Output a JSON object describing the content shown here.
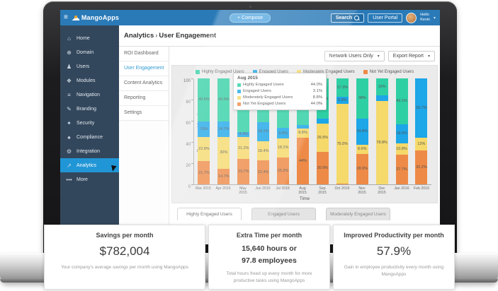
{
  "topbar": {
    "brand": "MangoApps",
    "compose_label": "+ Compose",
    "search_label": "Search",
    "user_portal_label": "User Portal",
    "greeting": "Hello",
    "username": "Kevin"
  },
  "sidebar": {
    "active_index": 9,
    "items": [
      {
        "label": "Home",
        "icon": "home",
        "glyph": "⌂"
      },
      {
        "label": "Domain",
        "icon": "globe",
        "glyph": "⊕"
      },
      {
        "label": "Users",
        "icon": "user",
        "glyph": "♟"
      },
      {
        "label": "Modules",
        "icon": "modules",
        "glyph": "❖"
      },
      {
        "label": "Navigation",
        "icon": "list",
        "glyph": "≡"
      },
      {
        "label": "Branding",
        "icon": "brush",
        "glyph": "✎"
      },
      {
        "label": "Security",
        "icon": "key",
        "glyph": "✦"
      },
      {
        "label": "Compliance",
        "icon": "shield",
        "glyph": "♠"
      },
      {
        "label": "Integration",
        "icon": "wrench",
        "glyph": "⚙"
      },
      {
        "label": "Analytics",
        "icon": "chart",
        "glyph": "↗"
      },
      {
        "label": "More",
        "icon": "ellipsis",
        "glyph": "•••"
      }
    ]
  },
  "breadcrumb": {
    "section": "Analytics",
    "separator": "›",
    "page": "User Engagement"
  },
  "subnav": {
    "active_index": 1,
    "items": [
      "ROI Dashboard",
      "User Engagement",
      "Content Analytics",
      "Reporting",
      "Settings"
    ]
  },
  "controls": {
    "filter_label": "Network Users Only",
    "export_label": "Export Report",
    "caret": "▾"
  },
  "chart_data": {
    "type": "bar",
    "stacked": true,
    "title": "",
    "xlabel": "Time",
    "ylabel": "Engagement Levels",
    "ylim": [
      0,
      100
    ],
    "yticks": [
      0,
      20,
      40,
      60,
      80,
      100
    ],
    "legend_position": "top",
    "categories": [
      "Mar 2015",
      "Apr 2015",
      "May 2015",
      "Jun 2015",
      "Jul 2015",
      "Aug 2015",
      "Sep 2015",
      "Oct 2015",
      "Nov 2015",
      "Dec 2015",
      "Jan 2016",
      "Feb 2016"
    ],
    "series": [
      {
        "name": "Highly Engaged Users",
        "color": "#2fcfa4",
        "values": [
          40.6,
          40.6,
          50.7,
          41.1,
          46.7,
          44.0,
          38.1,
          17.3,
          38.0,
          16.0,
          43.1,
          0
        ],
        "labels": [
          "40.6%",
          "40.6%",
          "50.7%",
          "41.1%",
          "46.7%",
          "44%",
          "38.1%",
          "17.3%",
          "38%",
          "16%",
          "43.1%",
          ""
        ]
      },
      {
        "name": "Engaged Users",
        "color": "#1da6e8",
        "values": [
          15.0,
          14.7,
          4.4,
          18.1,
          9.9,
          3.1,
          4.5,
          6.8,
          24.8,
          5.2,
          18.5,
          55.7
        ],
        "labels": [
          "15%",
          "14.7%",
          "4.4%",
          "18.1%",
          "9.9%",
          "",
          "",
          "6.8%",
          "24.8%",
          "",
          "18.5%",
          "55.7%"
        ]
      },
      {
        "name": "Moderately Engaged Users",
        "color": "#f5d96b",
        "values": [
          22.8,
          30.0,
          21.2,
          18.4,
          18.1,
          8.8,
          26.5,
          75.5,
          8.6,
          78.8,
          10.8,
          12.0
        ],
        "labels": [
          "22.8%",
          "30%",
          "21.2%",
          "18.4%",
          "18.1%",
          "8.8%",
          "26.5%",
          "75.5%",
          "8.6%",
          "78.8%",
          "10.8%",
          "12%"
        ]
      },
      {
        "name": "Not Yet Engaged Users",
        "color": "#ee8a47",
        "values": [
          21.7,
          14.7,
          23.7,
          22.4,
          25.3,
          44.0,
          30.9,
          0.4,
          28.9,
          0,
          27.7,
          32.2
        ],
        "labels": [
          "21.7%",
          "14.7%",
          "23.7%",
          "22.4%",
          "25.3%",
          "44%",
          "30.9%",
          "",
          "28.9%",
          "",
          "27.7%",
          "32.2%"
        ]
      }
    ]
  },
  "tooltip": {
    "title": "Aug 2015",
    "rows": [
      {
        "label": "Highly Engaged Users",
        "value": "44.0%",
        "color": "#2fcfa4"
      },
      {
        "label": "Engaged Users",
        "value": "3.1%",
        "color": "#1da6e8"
      },
      {
        "label": "Moderately Engaged Users",
        "value": "8.8%",
        "color": "#f5d96b"
      },
      {
        "label": "Not Yet Engaged Users",
        "value": "44.0%",
        "color": "#ee8a47"
      }
    ]
  },
  "tabs": {
    "active_index": 0,
    "items": [
      "Highly Engaged Users",
      "Engaged Users",
      "Moderately Engaged Users"
    ]
  },
  "cards": [
    {
      "title": "Savings per month",
      "value_lines": [
        "$782,004"
      ],
      "desc": "Your company's average savings per month using MangoApps"
    },
    {
      "title": "Extra Time per month",
      "value_lines": [
        "15,640 hours  or",
        "97.8 employees"
      ],
      "desc": "Total hours freed up every month for more productive tasks using MangoApps"
    },
    {
      "title": "Improved Productivity per month",
      "value_lines": [
        "57.9%"
      ],
      "desc": "Gain in employee productivity every month using MangoApps"
    }
  ],
  "colors": {
    "topbar": "#2a7ab8",
    "sidebar": "#33475c",
    "active_blue": "#2196d6",
    "chart_bg": "#ebebeb"
  }
}
